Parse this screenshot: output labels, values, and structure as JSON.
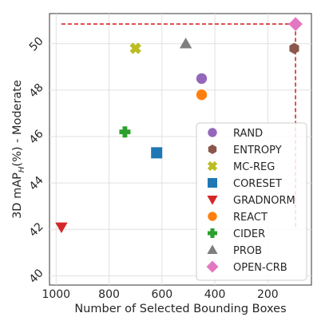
{
  "chart_data": {
    "type": "scatter",
    "xlabel": "Number of Selected Bounding Boxes",
    "ylabel_parts": [
      "3D mAP",
      "H",
      "(%) - Moderate"
    ],
    "xlim": [
      1025,
      35
    ],
    "ylim": [
      39.6,
      51.3
    ],
    "x_inverted": true,
    "x_ticks": [
      1000,
      800,
      600,
      400,
      200
    ],
    "y_ticks": [
      40,
      42,
      44,
      46,
      48,
      50
    ],
    "grid": true,
    "legend_position": "lower-right",
    "series": [
      {
        "name": "RAND",
        "color": "#9467bd",
        "marker": "circle",
        "x": 450,
        "y": 48.5
      },
      {
        "name": "ENTROPY",
        "color": "#8c564b",
        "marker": "hexagon",
        "x": 100,
        "y": 49.8
      },
      {
        "name": "MC-REG",
        "color": "#bcbd22",
        "marker": "x",
        "x": 700,
        "y": 49.8
      },
      {
        "name": "CORESET",
        "color": "#1f77b4",
        "marker": "square",
        "x": 620,
        "y": 45.3
      },
      {
        "name": "GRADNORM",
        "color": "#d62728",
        "marker": "triangle-down",
        "x": 980,
        "y": 42.1
      },
      {
        "name": "REACT",
        "color": "#ff7f0e",
        "marker": "circle",
        "x": 450,
        "y": 47.8
      },
      {
        "name": "CIDER",
        "color": "#2ca02c",
        "marker": "plus",
        "x": 740,
        "y": 46.2
      },
      {
        "name": "PROB",
        "color": "#7f7f7f",
        "marker": "triangle-up",
        "x": 510,
        "y": 50.0
      },
      {
        "name": "OPEN-CRB",
        "color": "#e377c2",
        "marker": "diamond",
        "x": 95,
        "y": 50.85
      }
    ],
    "reference_lines": [
      {
        "orientation": "horizontal",
        "y": 50.85,
        "x_from": 980,
        "x_to": 95,
        "color": "#d62728",
        "style": "dashed"
      },
      {
        "orientation": "vertical",
        "x": 95,
        "y_from": 42.1,
        "y_to": 50.85,
        "color": "#d62728",
        "style": "dashed"
      }
    ]
  }
}
